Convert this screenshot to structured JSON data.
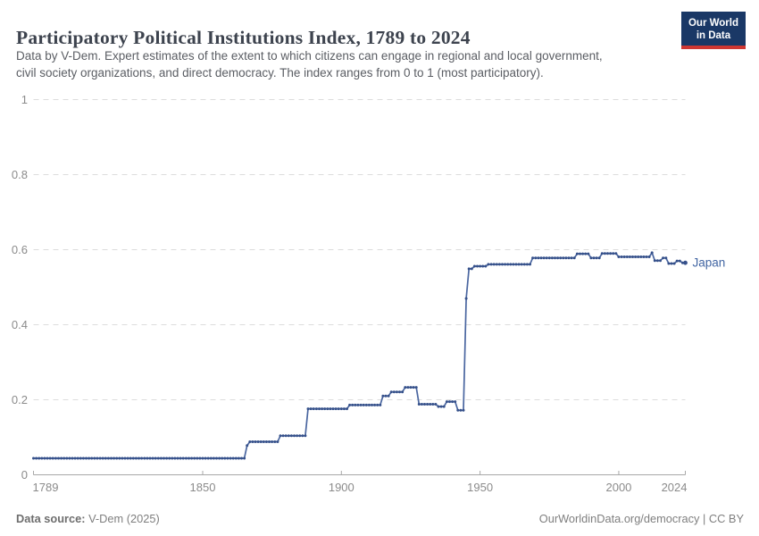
{
  "header": {
    "title": "Participatory Political Institutions Index, 1789 to 2024",
    "subtitle_line1": "Data by V-Dem. Expert estimates of the extent to which citizens can engage in regional and local government,",
    "subtitle_line2": "civil society organizations, and direct democracy. The index ranges from 0 to 1 (most participatory).",
    "logo": {
      "line1": "Our World",
      "line2": "in Data"
    }
  },
  "chart_data": {
    "type": "line",
    "title": "Participatory Political Institutions Index, 1789 to 2024",
    "entity": "Japan",
    "x_axis": {
      "min": 1789,
      "max": 2024,
      "ticks": [
        1789,
        1850,
        1900,
        1950,
        2000,
        2024
      ]
    },
    "y_axis": {
      "min": 0,
      "max": 1,
      "ticks": [
        0,
        0.2,
        0.4,
        0.6,
        0.8,
        1
      ],
      "grid": "dashed"
    },
    "legend_position": "line-end-label",
    "series": [
      {
        "name": "Japan",
        "segments_note": "[startYear, endYear, indexValue] inclusive; one data point per year",
        "segments": [
          [
            1789,
            1865,
            0.044
          ],
          [
            1866,
            1866,
            0.078
          ],
          [
            1867,
            1877,
            0.088
          ],
          [
            1878,
            1887,
            0.104
          ],
          [
            1888,
            1902,
            0.176
          ],
          [
            1903,
            1914,
            0.186
          ],
          [
            1915,
            1917,
            0.21
          ],
          [
            1918,
            1922,
            0.221
          ],
          [
            1923,
            1927,
            0.233
          ],
          [
            1928,
            1934,
            0.188
          ],
          [
            1935,
            1937,
            0.182
          ],
          [
            1938,
            1941,
            0.195
          ],
          [
            1942,
            1944,
            0.172
          ],
          [
            1945,
            1945,
            0.47
          ],
          [
            1946,
            1947,
            0.549
          ],
          [
            1948,
            1952,
            0.556
          ],
          [
            1953,
            1968,
            0.561
          ],
          [
            1969,
            1984,
            0.578
          ],
          [
            1985,
            1989,
            0.589
          ],
          [
            1990,
            1993,
            0.578
          ],
          [
            1994,
            1999,
            0.59
          ],
          [
            2000,
            2011,
            0.581
          ],
          [
            2012,
            2012,
            0.592
          ],
          [
            2013,
            2015,
            0.571
          ],
          [
            2016,
            2017,
            0.578
          ],
          [
            2018,
            2020,
            0.563
          ],
          [
            2021,
            2022,
            0.57
          ],
          [
            2023,
            2024,
            0.565
          ]
        ]
      }
    ]
  },
  "colors": {
    "line": "#4a66a0",
    "point": "#35508a",
    "entity_label": "#4266a3",
    "gridline": "#dcdcdc",
    "axis": "#a8a8a8",
    "tick_label": "#8b8b8b"
  },
  "footer": {
    "source_label": "Data source:",
    "source_value": " V-Dem (2025)",
    "link_text": "OurWorldinData.org/democracy",
    "license_text": " | CC BY"
  }
}
